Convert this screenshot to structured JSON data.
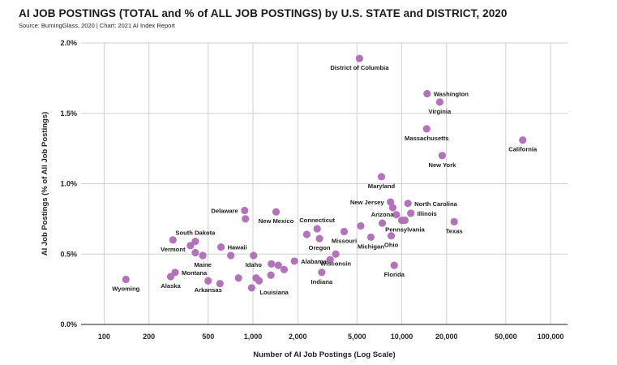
{
  "title": "AI JOB POSTINGS (TOTAL and % of ALL JOB POSTINGS) by U.S. STATE and DISTRICT, 2020",
  "source": "Source: BurningGlass, 2020 | Chart: 2021 AI Index Report",
  "colors": {
    "dot": "#b373b8",
    "grid": "#cfcfcf",
    "text": "#1a1a1a"
  },
  "chart_data": {
    "type": "scatter",
    "xscale": "log",
    "xlabel": "Number of AI Job Postings (Log Scale)",
    "ylabel": "AI Job Postings (% of All Job Postings)",
    "xlim": [
      70,
      130000
    ],
    "ylim": [
      0,
      2.0
    ],
    "xticks": [
      {
        "value": 100,
        "label": "100"
      },
      {
        "value": 200,
        "label": "200"
      },
      {
        "value": 500,
        "label": "500"
      },
      {
        "value": 1000,
        "label": "1,000"
      },
      {
        "value": 2000,
        "label": "2,000"
      },
      {
        "value": 5000,
        "label": "5,000"
      },
      {
        "value": 10000,
        "label": "10,000"
      },
      {
        "value": 20000,
        "label": "20,000"
      },
      {
        "value": 50000,
        "label": "50,000"
      },
      {
        "value": 100000,
        "label": "100,000"
      }
    ],
    "yticks": [
      {
        "value": 0,
        "label": "0.0%"
      },
      {
        "value": 0.5,
        "label": "0.5%"
      },
      {
        "value": 1.0,
        "label": "1.0%"
      },
      {
        "value": 1.5,
        "label": "1.5%"
      },
      {
        "value": 2.0,
        "label": "2.0%"
      }
    ],
    "points": [
      {
        "label": "District of Columbia",
        "x": 5200,
        "y": 1.89,
        "pos": "below"
      },
      {
        "label": "Washington",
        "x": 14800,
        "y": 1.64,
        "pos": "right"
      },
      {
        "label": "Virginia",
        "x": 18000,
        "y": 1.58,
        "pos": "below"
      },
      {
        "label": "Massachusetts",
        "x": 14700,
        "y": 1.39,
        "pos": "below"
      },
      {
        "label": "California",
        "x": 65000,
        "y": 1.31,
        "pos": "below"
      },
      {
        "label": "New York",
        "x": 18700,
        "y": 1.2,
        "pos": "below"
      },
      {
        "label": "Maryland",
        "x": 7300,
        "y": 1.05,
        "pos": "below"
      },
      {
        "label": "New Jersey",
        "x": 8400,
        "y": 0.87,
        "pos": "left"
      },
      {
        "label": "North Carolina",
        "x": 11000,
        "y": 0.86,
        "pos": "right"
      },
      {
        "label": "",
        "x": 8700,
        "y": 0.83,
        "pos": "none"
      },
      {
        "label": "Illinois",
        "x": 11500,
        "y": 0.79,
        "pos": "right"
      },
      {
        "label": "",
        "x": 9200,
        "y": 0.78,
        "pos": "none"
      },
      {
        "label": "Arizona",
        "x": 7400,
        "y": 0.72,
        "pos": "above"
      },
      {
        "label": "",
        "x": 10000,
        "y": 0.74,
        "pos": "none"
      },
      {
        "label": "Pennsylvania",
        "x": 10500,
        "y": 0.74,
        "pos": "below"
      },
      {
        "label": "Texas",
        "x": 22500,
        "y": 0.73,
        "pos": "below"
      },
      {
        "label": "",
        "x": 5300,
        "y": 0.7,
        "pos": "none"
      },
      {
        "label": "Ohio",
        "x": 8500,
        "y": 0.63,
        "pos": "below"
      },
      {
        "label": "Michigan",
        "x": 6200,
        "y": 0.62,
        "pos": "below"
      },
      {
        "label": "Connecticut",
        "x": 2700,
        "y": 0.68,
        "pos": "above"
      },
      {
        "label": "Missouri",
        "x": 4100,
        "y": 0.66,
        "pos": "below"
      },
      {
        "label": "",
        "x": 2300,
        "y": 0.64,
        "pos": "none"
      },
      {
        "label": "Oregon",
        "x": 2800,
        "y": 0.61,
        "pos": "below"
      },
      {
        "label": "Wisconsin",
        "x": 3600,
        "y": 0.5,
        "pos": "below"
      },
      {
        "label": "Alabama",
        "x": 1900,
        "y": 0.45,
        "pos": "right"
      },
      {
        "label": "",
        "x": 3300,
        "y": 0.46,
        "pos": "none"
      },
      {
        "label": "Indiana",
        "x": 2900,
        "y": 0.37,
        "pos": "below"
      },
      {
        "label": "Florida",
        "x": 8900,
        "y": 0.42,
        "pos": "below"
      },
      {
        "label": "New Mexico",
        "x": 1430,
        "y": 0.8,
        "pos": "below"
      },
      {
        "label": "Delaware",
        "x": 880,
        "y": 0.81,
        "pos": "left"
      },
      {
        "label": "",
        "x": 890,
        "y": 0.75,
        "pos": "none"
      },
      {
        "label": "Hawaii",
        "x": 610,
        "y": 0.55,
        "pos": "right"
      },
      {
        "label": "Idaho",
        "x": 1010,
        "y": 0.49,
        "pos": "below"
      },
      {
        "label": "",
        "x": 710,
        "y": 0.49,
        "pos": "none"
      },
      {
        "label": "South Dakota",
        "x": 410,
        "y": 0.59,
        "pos": "above"
      },
      {
        "label": "",
        "x": 380,
        "y": 0.56,
        "pos": "none"
      },
      {
        "label": "Vermont",
        "x": 290,
        "y": 0.6,
        "pos": "below"
      },
      {
        "label": "",
        "x": 410,
        "y": 0.51,
        "pos": "none"
      },
      {
        "label": "Maine",
        "x": 460,
        "y": 0.49,
        "pos": "below"
      },
      {
        "label": "",
        "x": 1330,
        "y": 0.43,
        "pos": "none"
      },
      {
        "label": "",
        "x": 1480,
        "y": 0.42,
        "pos": "none"
      },
      {
        "label": "",
        "x": 1620,
        "y": 0.39,
        "pos": "none"
      },
      {
        "label": "Montana",
        "x": 300,
        "y": 0.37,
        "pos": "right"
      },
      {
        "label": "Alaska",
        "x": 280,
        "y": 0.34,
        "pos": "below"
      },
      {
        "label": "",
        "x": 800,
        "y": 0.33,
        "pos": "none"
      },
      {
        "label": "",
        "x": 1050,
        "y": 0.33,
        "pos": "none"
      },
      {
        "label": "",
        "x": 1320,
        "y": 0.35,
        "pos": "none"
      },
      {
        "label": "",
        "x": 1100,
        "y": 0.31,
        "pos": "none"
      },
      {
        "label": "Louisiana",
        "x": 980,
        "y": 0.26,
        "pos": "rightbelow"
      },
      {
        "label": "Arkansas",
        "x": 500,
        "y": 0.31,
        "pos": "below"
      },
      {
        "label": "",
        "x": 600,
        "y": 0.29,
        "pos": "none"
      },
      {
        "label": "Wyoming",
        "x": 140,
        "y": 0.32,
        "pos": "below"
      }
    ]
  }
}
